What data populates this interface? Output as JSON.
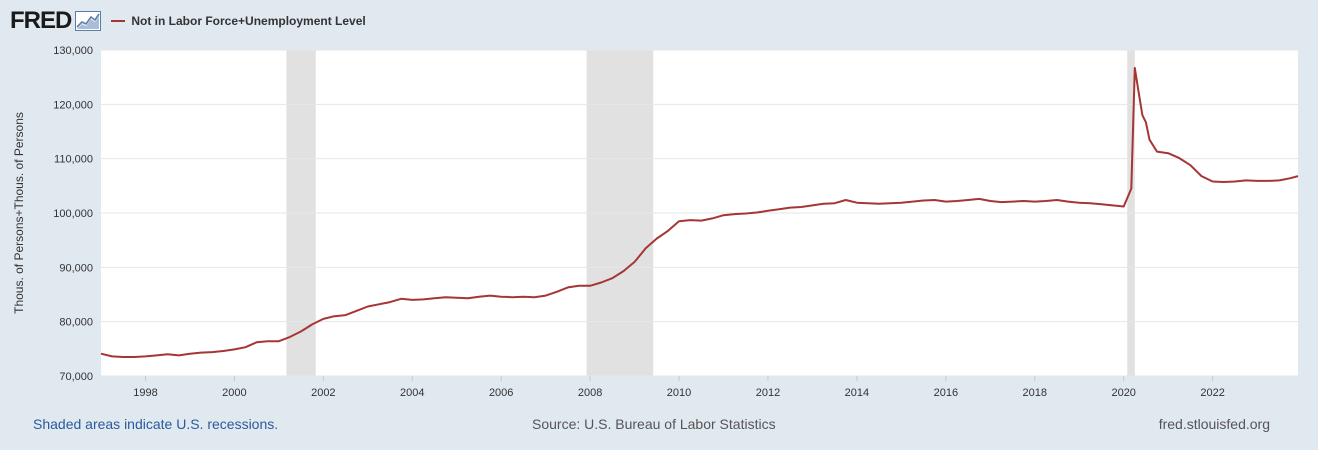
{
  "header": {
    "logo_text": "FRED",
    "legend_label": "Not in Labor Force+Unemployment Level",
    "series_color": "#a63535"
  },
  "footer": {
    "recession_note": "Shaded areas indicate U.S. recessions.",
    "source": "Source: U.S. Bureau of Labor Statistics",
    "site": "fred.stlouisfed.org"
  },
  "chart_data": {
    "type": "line",
    "title": "",
    "ylabel": "Thous. of Persons+Thous. of Persons",
    "xlabel": "",
    "xlim": [
      1997.0,
      2023.92
    ],
    "ylim": [
      70000,
      130000
    ],
    "yticks": [
      70000,
      80000,
      90000,
      100000,
      110000,
      120000,
      130000
    ],
    "ytick_labels": [
      "70,000",
      "80,000",
      "90,000",
      "100,000",
      "110,000",
      "120,000",
      "130,000"
    ],
    "xticks": [
      1998,
      2000,
      2002,
      2004,
      2006,
      2008,
      2010,
      2012,
      2014,
      2016,
      2018,
      2020,
      2022
    ],
    "xtick_labels": [
      "1998",
      "2000",
      "2002",
      "2004",
      "2006",
      "2008",
      "2010",
      "2012",
      "2014",
      "2016",
      "2018",
      "2020",
      "2022"
    ],
    "grid": true,
    "recessions": [
      [
        2001.17,
        2001.83
      ],
      [
        2007.92,
        2009.42
      ],
      [
        2020.08,
        2020.25
      ]
    ],
    "series": [
      {
        "name": "Not in Labor Force+Unemployment Level",
        "points": [
          [
            1997.0,
            74100
          ],
          [
            1997.25,
            73600
          ],
          [
            1997.5,
            73500
          ],
          [
            1997.75,
            73500
          ],
          [
            1998.0,
            73600
          ],
          [
            1998.25,
            73800
          ],
          [
            1998.5,
            74000
          ],
          [
            1998.75,
            73800
          ],
          [
            1999.0,
            74100
          ],
          [
            1999.25,
            74300
          ],
          [
            1999.5,
            74400
          ],
          [
            1999.75,
            74600
          ],
          [
            2000.0,
            74900
          ],
          [
            2000.25,
            75300
          ],
          [
            2000.5,
            76200
          ],
          [
            2000.75,
            76400
          ],
          [
            2001.0,
            76400
          ],
          [
            2001.25,
            77200
          ],
          [
            2001.5,
            78200
          ],
          [
            2001.75,
            79500
          ],
          [
            2002.0,
            80500
          ],
          [
            2002.25,
            81000
          ],
          [
            2002.5,
            81200
          ],
          [
            2002.75,
            82000
          ],
          [
            2003.0,
            82800
          ],
          [
            2003.25,
            83200
          ],
          [
            2003.5,
            83600
          ],
          [
            2003.75,
            84200
          ],
          [
            2004.0,
            84000
          ],
          [
            2004.25,
            84100
          ],
          [
            2004.5,
            84300
          ],
          [
            2004.75,
            84500
          ],
          [
            2005.0,
            84400
          ],
          [
            2005.25,
            84300
          ],
          [
            2005.5,
            84600
          ],
          [
            2005.75,
            84800
          ],
          [
            2006.0,
            84600
          ],
          [
            2006.25,
            84500
          ],
          [
            2006.5,
            84600
          ],
          [
            2006.75,
            84500
          ],
          [
            2007.0,
            84800
          ],
          [
            2007.25,
            85500
          ],
          [
            2007.5,
            86300
          ],
          [
            2007.75,
            86600
          ],
          [
            2008.0,
            86600
          ],
          [
            2008.25,
            87200
          ],
          [
            2008.5,
            88000
          ],
          [
            2008.75,
            89300
          ],
          [
            2009.0,
            91000
          ],
          [
            2009.25,
            93500
          ],
          [
            2009.5,
            95300
          ],
          [
            2009.75,
            96700
          ],
          [
            2010.0,
            98500
          ],
          [
            2010.25,
            98700
          ],
          [
            2010.5,
            98600
          ],
          [
            2010.75,
            99000
          ],
          [
            2011.0,
            99600
          ],
          [
            2011.25,
            99800
          ],
          [
            2011.5,
            99900
          ],
          [
            2011.75,
            100100
          ],
          [
            2012.0,
            100400
          ],
          [
            2012.25,
            100700
          ],
          [
            2012.5,
            101000
          ],
          [
            2012.75,
            101100
          ],
          [
            2013.0,
            101400
          ],
          [
            2013.25,
            101700
          ],
          [
            2013.5,
            101800
          ],
          [
            2013.75,
            102400
          ],
          [
            2014.0,
            101900
          ],
          [
            2014.25,
            101800
          ],
          [
            2014.5,
            101700
          ],
          [
            2014.75,
            101800
          ],
          [
            2015.0,
            101900
          ],
          [
            2015.25,
            102100
          ],
          [
            2015.5,
            102300
          ],
          [
            2015.75,
            102400
          ],
          [
            2016.0,
            102100
          ],
          [
            2016.25,
            102200
          ],
          [
            2016.5,
            102400
          ],
          [
            2016.75,
            102600
          ],
          [
            2017.0,
            102200
          ],
          [
            2017.25,
            102000
          ],
          [
            2017.5,
            102100
          ],
          [
            2017.75,
            102200
          ],
          [
            2018.0,
            102100
          ],
          [
            2018.25,
            102200
          ],
          [
            2018.5,
            102400
          ],
          [
            2018.75,
            102100
          ],
          [
            2019.0,
            101900
          ],
          [
            2019.25,
            101800
          ],
          [
            2019.5,
            101600
          ],
          [
            2019.75,
            101400
          ],
          [
            2020.0,
            101200
          ],
          [
            2020.17,
            104500
          ],
          [
            2020.25,
            126700
          ],
          [
            2020.33,
            122500
          ],
          [
            2020.42,
            118000
          ],
          [
            2020.5,
            116700
          ],
          [
            2020.58,
            113500
          ],
          [
            2020.75,
            111300
          ],
          [
            2021.0,
            111000
          ],
          [
            2021.25,
            110100
          ],
          [
            2021.5,
            108800
          ],
          [
            2021.75,
            106800
          ],
          [
            2022.0,
            105800
          ],
          [
            2022.25,
            105700
          ],
          [
            2022.5,
            105800
          ],
          [
            2022.75,
            106000
          ],
          [
            2023.0,
            105900
          ],
          [
            2023.25,
            105900
          ],
          [
            2023.5,
            106000
          ],
          [
            2023.75,
            106400
          ],
          [
            2023.92,
            106800
          ]
        ]
      }
    ]
  }
}
